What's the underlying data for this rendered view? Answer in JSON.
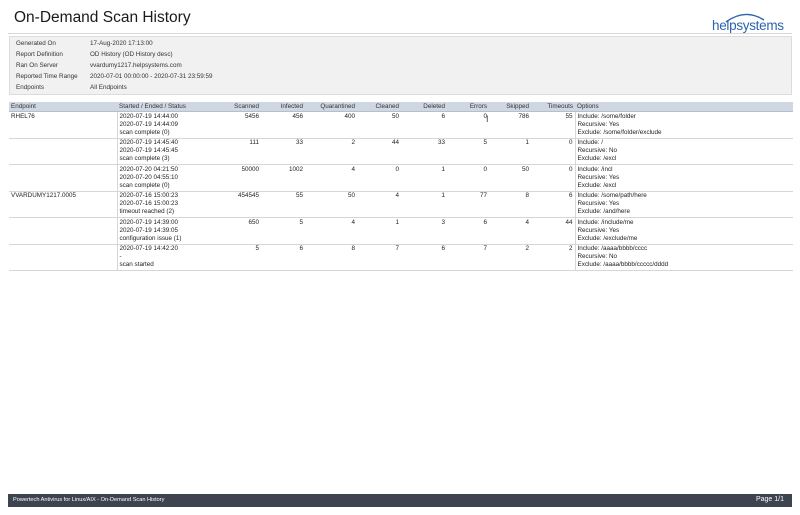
{
  "header": {
    "title": "On-Demand Scan History",
    "logo_text": "helpsystems",
    "brand_color": "#2a64ad"
  },
  "report_info": [
    {
      "label": "Generated On",
      "value": "17-Aug-2020 17:13:00"
    },
    {
      "label": "Report Definition",
      "value": "OD History (OD History desc)"
    },
    {
      "label": "Ran On Server",
      "value": "vvardumy1217.helpsystems.com"
    },
    {
      "label": "Reported Time Range",
      "value": "2020-07-01 00:00:00 - 2020-07-31 23:59:59"
    },
    {
      "label": "Endpoints",
      "value": "All Endpoints"
    }
  ],
  "table": {
    "columns": [
      "Endpoint",
      "Started / Ended / Status",
      "Scanned",
      "Infected",
      "Quarantined",
      "Cleaned",
      "Deleted",
      "Errors",
      "Skipped",
      "Timeouts",
      "Options"
    ],
    "rows": [
      {
        "endpoint": "RHEL76",
        "started": "2020-07-19 14:44:00",
        "ended": "2020-07-19 14:44:09",
        "status": "scan complete (0)",
        "scanned": "5456",
        "infected": "456",
        "quarantined": "400",
        "cleaned": "50",
        "deleted": "6",
        "errors": "0",
        "skipped": "786",
        "timeouts": "55",
        "options": [
          "Include: /some/folder",
          "Recursive: Yes",
          "Exclude: /some/folder/exclude"
        ]
      },
      {
        "endpoint": "",
        "started": "2020-07-19 14:45:40",
        "ended": "2020-07-19 14:45:45",
        "status": "scan complete (3)",
        "scanned": "111",
        "infected": "33",
        "quarantined": "2",
        "cleaned": "44",
        "deleted": "33",
        "errors": "5",
        "skipped": "1",
        "timeouts": "0",
        "options": [
          "Include: /",
          "Recursive: No",
          "Exclude: /excl"
        ]
      },
      {
        "endpoint": "",
        "started": "2020-07-20 04:21:50",
        "ended": "2020-07-20 04:55:10",
        "status": "scan complete (0)",
        "scanned": "50000",
        "infected": "1002",
        "quarantined": "4",
        "cleaned": "0",
        "deleted": "1",
        "errors": "0",
        "skipped": "50",
        "timeouts": "0",
        "options": [
          "Include: /incl",
          "Recursive: Yes",
          "Exclude: /excl"
        ]
      },
      {
        "endpoint": "VVARDUMY1217.0005",
        "started": "2020-07-16 15:00:23",
        "ended": "2020-07-16 15:00:23",
        "status": "timeout reached (2)",
        "scanned": "454545",
        "infected": "55",
        "quarantined": "50",
        "cleaned": "4",
        "deleted": "1",
        "errors": "77",
        "skipped": "8",
        "timeouts": "6",
        "options": [
          "Include: /some/path/here",
          "Recursive: Yes",
          "Exclude: /and/here"
        ]
      },
      {
        "endpoint": "",
        "started": "2020-07-19 14:39:00",
        "ended": "2020-07-19 14:39:05",
        "status": "configuration issue (1)",
        "scanned": "650",
        "infected": "5",
        "quarantined": "4",
        "cleaned": "1",
        "deleted": "3",
        "errors": "6",
        "skipped": "4",
        "timeouts": "44",
        "options": [
          "Include: /include/me",
          "Recursive: Yes",
          "Exclude: /exclude/me"
        ]
      },
      {
        "endpoint": "",
        "started": "2020-07-19 14:42:20",
        "ended": "-",
        "status": "scan started",
        "scanned": "5",
        "infected": "6",
        "quarantined": "8",
        "cleaned": "7",
        "deleted": "6",
        "errors": "7",
        "skipped": "2",
        "timeouts": "2",
        "options": [
          "Include: /aaaa/bbbb/cccc",
          "Recursive: No",
          "Exclude: /aaaa/bbbb/ccccc/dddd"
        ]
      }
    ]
  },
  "footer": {
    "product": "Powertech Antivirus for Linux/AIX - On-Demand Scan History",
    "page": "Page 1/1"
  }
}
